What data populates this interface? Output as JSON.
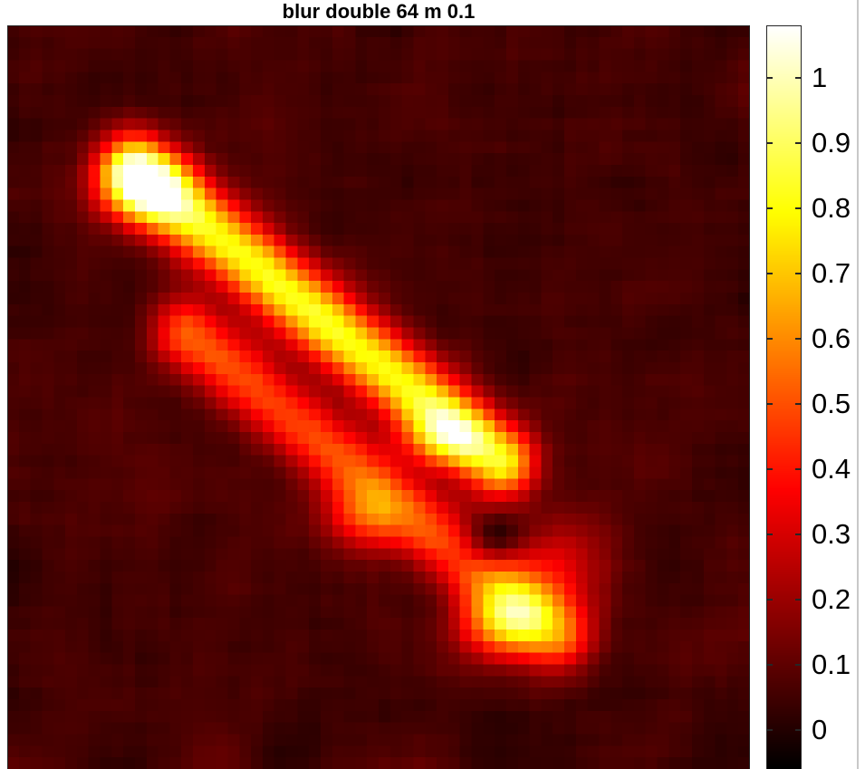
{
  "chart_data": {
    "type": "heatmap",
    "title": "blur double 64 m 0.1",
    "grid_size": [
      64,
      64
    ],
    "colormap": "hot",
    "clim": [
      -0.06,
      1.08
    ],
    "colorbar": {
      "ticks": [
        0,
        0.1,
        0.2,
        0.3,
        0.4,
        0.5,
        0.6,
        0.7,
        0.8,
        0.9,
        1
      ],
      "tick_labels": [
        "0",
        "0.1",
        "0.2",
        "0.3",
        "0.4",
        "0.5",
        "0.6",
        "0.7",
        "0.8",
        "0.9",
        "1"
      ],
      "placement": "right"
    },
    "features": [
      {
        "shape": "line",
        "from": [
          10.5,
          12
        ],
        "to": [
          42,
          37
        ],
        "width": 3.2,
        "peak": 0.78
      },
      {
        "shape": "blob",
        "center": [
          11.5,
          13.5
        ],
        "sigma": [
          2.6,
          2.2
        ],
        "peak": 0.62
      },
      {
        "shape": "blob",
        "center": [
          37,
          35
        ],
        "sigma": [
          2.5,
          1.8
        ],
        "peak": 0.35
      },
      {
        "shape": "blob",
        "center": [
          42.5,
          51
        ],
        "sigma": [
          3,
          2.2
        ],
        "peak": 0.55
      },
      {
        "shape": "blob",
        "center": [
          30,
          42
        ],
        "sigma": [
          2.5,
          2
        ],
        "peak": 0.3
      },
      {
        "shape": "blob",
        "center": [
          47,
          46
        ],
        "sigma": [
          3.5,
          3
        ],
        "peak": 0.25
      },
      {
        "shape": "line",
        "from": [
          15,
          26
        ],
        "to": [
          47,
          52
        ],
        "width": 3.2,
        "peak": 0.45
      },
      {
        "shape": "blob",
        "center": [
          41,
          44
        ],
        "sigma": [
          2,
          1.5
        ],
        "peak": -0.25
      }
    ],
    "noise_amplitude": 0.06
  }
}
